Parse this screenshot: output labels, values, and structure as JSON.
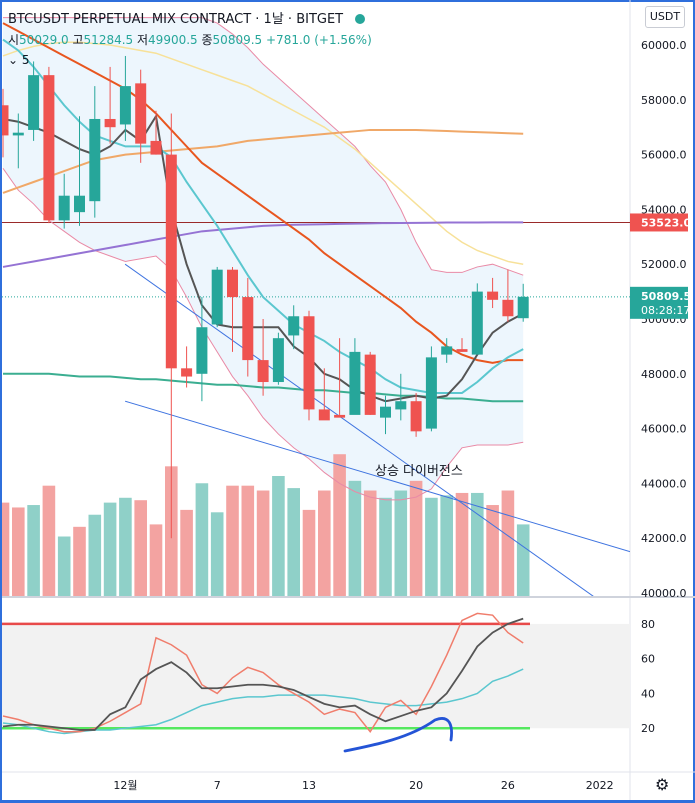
{
  "header": {
    "symbol": "BTCUSDT PERPETUAL MIX CONTRACT",
    "interval": "1날",
    "exchange": "BITGET",
    "open_label": "시",
    "open": "50029.0",
    "high_label": "고",
    "high": "51284.5",
    "low_label": "저",
    "low": "49900.5",
    "close_label": "종",
    "close": "50809.5",
    "change": "+781.0 (+1.56%)",
    "indicator_value": "5",
    "currency_button": "USDT"
  },
  "colors": {
    "up": "#26a69a",
    "down": "#ef5350",
    "up_vol": "#8fd0c8",
    "down_vol": "#f3a3a1",
    "ma5": "#555555",
    "ma10": "#5bc7cf",
    "ma20": "#e8561f",
    "ma60": "#3bae91",
    "ma120": "#9573d4",
    "ma200": "#f0a868",
    "ma_long": "#f7e199",
    "bb": "#e98aa6",
    "hline": "#9a2a2a",
    "trend": "#3f74e0",
    "stoch_k": "#f07d6c",
    "stoch_d": "#555555",
    "rsi": "#5bc7cf",
    "stoch_up": "#e84a4a",
    "stoch_dn": "#55e85f",
    "annot": "#2454d6"
  },
  "price_axis": {
    "ticks": [
      "60000.0",
      "58000.0",
      "56000.0",
      "54000.0",
      "52000.0",
      "50000.0",
      "48000.0",
      "46000.0",
      "44000.0",
      "42000.0",
      "40000.0"
    ]
  },
  "indicator_axis": {
    "ticks": [
      "80",
      "60",
      "40",
      "20"
    ]
  },
  "time_axis": {
    "ticks": [
      "12월",
      "7",
      "13",
      "20",
      "26",
      "2022"
    ]
  },
  "price_labels": {
    "hline": "53523.0",
    "last_price": "50809.5",
    "countdown": "08:28:17"
  },
  "annotation": {
    "text": "상승 다이버전스"
  },
  "settings_icon": "gear-icon",
  "chart_data": {
    "type": "candlestick",
    "ylim": [
      40000,
      61500
    ],
    "hline": 53523,
    "candles": [
      {
        "date": "11-23",
        "o": 57800,
        "h": 58400,
        "l": 55900,
        "c": 56700
      },
      {
        "date": "11-24",
        "o": 56700,
        "h": 57500,
        "l": 55500,
        "c": 56800
      },
      {
        "date": "11-25",
        "o": 56900,
        "h": 59400,
        "l": 56500,
        "c": 58900
      },
      {
        "date": "11-26",
        "o": 58900,
        "h": 59200,
        "l": 53500,
        "c": 53600
      },
      {
        "date": "11-27",
        "o": 53600,
        "h": 55300,
        "l": 53300,
        "c": 54500
      },
      {
        "date": "11-28",
        "o": 53900,
        "h": 57400,
        "l": 53400,
        "c": 54500
      },
      {
        "date": "11-29",
        "o": 54300,
        "h": 58500,
        "l": 53700,
        "c": 57300
      },
      {
        "date": "11-30",
        "o": 57300,
        "h": 59200,
        "l": 56400,
        "c": 57000
      },
      {
        "date": "12-01",
        "o": 57100,
        "h": 59600,
        "l": 56500,
        "c": 58500
      },
      {
        "date": "12-02",
        "o": 58600,
        "h": 59100,
        "l": 55700,
        "c": 56400
      },
      {
        "date": "12-03",
        "o": 56500,
        "h": 57600,
        "l": 56000,
        "c": 56000
      },
      {
        "date": "12-04",
        "o": 56000,
        "h": 57500,
        "l": 42000,
        "c": 48200
      },
      {
        "date": "12-05",
        "o": 48200,
        "h": 49000,
        "l": 47500,
        "c": 47900
      },
      {
        "date": "12-06",
        "o": 48000,
        "h": 50800,
        "l": 47000,
        "c": 49700
      },
      {
        "date": "12-07",
        "o": 49800,
        "h": 51900,
        "l": 49700,
        "c": 51800
      },
      {
        "date": "12-08",
        "o": 51800,
        "h": 51900,
        "l": 48800,
        "c": 50800
      },
      {
        "date": "12-09",
        "o": 50800,
        "h": 51500,
        "l": 47900,
        "c": 48500
      },
      {
        "date": "12-10",
        "o": 48500,
        "h": 50000,
        "l": 47200,
        "c": 47700
      },
      {
        "date": "12-11",
        "o": 47700,
        "h": 49500,
        "l": 47600,
        "c": 49300
      },
      {
        "date": "12-12",
        "o": 49400,
        "h": 50500,
        "l": 48900,
        "c": 50100
      },
      {
        "date": "12-13",
        "o": 50100,
        "h": 50300,
        "l": 46300,
        "c": 46700
      },
      {
        "date": "12-14",
        "o": 46700,
        "h": 48200,
        "l": 46400,
        "c": 46300
      },
      {
        "date": "12-15",
        "o": 46500,
        "h": 49300,
        "l": 46500,
        "c": 46400
      },
      {
        "date": "12-16",
        "o": 46500,
        "h": 49300,
        "l": 46600,
        "c": 48800
      },
      {
        "date": "12-17",
        "o": 48700,
        "h": 48800,
        "l": 46500,
        "c": 46500
      },
      {
        "date": "12-18",
        "o": 46400,
        "h": 47200,
        "l": 45800,
        "c": 46800
      },
      {
        "date": "12-19",
        "o": 46700,
        "h": 48000,
        "l": 46300,
        "c": 47000
      },
      {
        "date": "12-20",
        "o": 47000,
        "h": 47300,
        "l": 45700,
        "c": 45900
      },
      {
        "date": "12-21",
        "o": 46000,
        "h": 49000,
        "l": 45900,
        "c": 48600
      },
      {
        "date": "12-22",
        "o": 48700,
        "h": 49300,
        "l": 48400,
        "c": 49000
      },
      {
        "date": "12-23",
        "o": 48900,
        "h": 49300,
        "l": 48800,
        "c": 48800
      },
      {
        "date": "12-24",
        "o": 48700,
        "h": 51300,
        "l": 48700,
        "c": 51000
      },
      {
        "date": "12-25",
        "o": 51000,
        "h": 51500,
        "l": 50400,
        "c": 50700
      },
      {
        "date": "12-26",
        "o": 50700,
        "h": 51800,
        "l": 49900,
        "c": 50100
      },
      {
        "date": "12-27",
        "o": 50029,
        "h": 51284.5,
        "l": 49900.5,
        "c": 50809.5
      }
    ],
    "volume": [
      {
        "v": 3.9,
        "up": false
      },
      {
        "v": 3.7,
        "up": false
      },
      {
        "v": 3.8,
        "up": true
      },
      {
        "v": 4.6,
        "up": false
      },
      {
        "v": 2.5,
        "up": true
      },
      {
        "v": 2.9,
        "up": false
      },
      {
        "v": 3.4,
        "up": true
      },
      {
        "v": 3.9,
        "up": true
      },
      {
        "v": 4.1,
        "up": true
      },
      {
        "v": 4.0,
        "up": false
      },
      {
        "v": 3.0,
        "up": false
      },
      {
        "v": 5.4,
        "up": false
      },
      {
        "v": 3.6,
        "up": false
      },
      {
        "v": 4.7,
        "up": true
      },
      {
        "v": 3.5,
        "up": true
      },
      {
        "v": 4.6,
        "up": false
      },
      {
        "v": 4.6,
        "up": false
      },
      {
        "v": 4.4,
        "up": false
      },
      {
        "v": 5.0,
        "up": true
      },
      {
        "v": 4.5,
        "up": true
      },
      {
        "v": 3.6,
        "up": false
      },
      {
        "v": 4.4,
        "up": false
      },
      {
        "v": 5.9,
        "up": false
      },
      {
        "v": 4.8,
        "up": true
      },
      {
        "v": 4.4,
        "up": false
      },
      {
        "v": 4.1,
        "up": true
      },
      {
        "v": 4.4,
        "up": true
      },
      {
        "v": 4.8,
        "up": false
      },
      {
        "v": 4.1,
        "up": true
      },
      {
        "v": 4.2,
        "up": true
      },
      {
        "v": 4.3,
        "up": false
      },
      {
        "v": 4.3,
        "up": true
      },
      {
        "v": 3.8,
        "up": false
      },
      {
        "v": 4.4,
        "up": false
      },
      {
        "v": 3.0,
        "up": true
      }
    ],
    "ma5": [
      57300,
      57200,
      57000,
      56800,
      56500,
      56200,
      56000,
      56300,
      56900,
      56500,
      57400,
      54000,
      52000,
      50500,
      49800,
      49700,
      49700,
      49700,
      49700,
      49000,
      48600,
      48000,
      47800,
      47400,
      47200,
      47000,
      47100,
      47200,
      47100,
      47200,
      47800,
      48700,
      49500,
      49900,
      50200
    ],
    "ma10": [
      60200,
      59800,
      59200,
      58500,
      57800,
      57200,
      56700,
      56500,
      56300,
      56300,
      56300,
      55900,
      55000,
      54200,
      53400,
      52500,
      51600,
      50800,
      50300,
      49800,
      49500,
      49200,
      48800,
      48500,
      48200,
      47800,
      47500,
      47400,
      47300,
      47300,
      47300,
      47700,
      48200,
      48600,
      48900
    ],
    "ma20": [
      60800,
      60500,
      60200,
      59900,
      59600,
      59300,
      59000,
      58700,
      58400,
      58000,
      57500,
      56900,
      56300,
      55700,
      55300,
      54900,
      54500,
      54100,
      53700,
      53300,
      52900,
      52400,
      52000,
      51600,
      51200,
      50800,
      50400,
      49900,
      49500,
      49000,
      48700,
      48500,
      48400,
      48500,
      48500
    ],
    "ma60": [
      48000,
      48000,
      48000,
      48000,
      47950,
      47900,
      47900,
      47900,
      47850,
      47800,
      47800,
      47750,
      47700,
      47650,
      47600,
      47600,
      47550,
      47500,
      47500,
      47450,
      47400,
      47400,
      47350,
      47300,
      47300,
      47250,
      47200,
      47200,
      47150,
      47100,
      47100,
      47050,
      47000,
      47000,
      47000
    ],
    "ma120": [
      51900,
      52000,
      52100,
      52200,
      52300,
      52400,
      52500,
      52600,
      52700,
      52800,
      52900,
      53000,
      53100,
      53200,
      53250,
      53300,
      53350,
      53400,
      53420,
      53440,
      53450,
      53460,
      53470,
      53480,
      53490,
      53500,
      53505,
      53510,
      53515,
      53520,
      53520,
      53520,
      53525,
      53525,
      53525
    ],
    "ma200": [
      54600,
      54800,
      55000,
      55200,
      55400,
      55600,
      55800,
      55900,
      56000,
      56050,
      56100,
      56150,
      56200,
      56250,
      56300,
      56400,
      56500,
      56550,
      56600,
      56650,
      56700,
      56750,
      56800,
      56850,
      56900,
      56900,
      56900,
      56900,
      56880,
      56860,
      56840,
      56820,
      56800,
      56780,
      56760
    ],
    "ma_long": [
      59600,
      59800,
      59950,
      60050,
      60100,
      60100,
      60050,
      60000,
      59900,
      59800,
      59700,
      59500,
      59300,
      59100,
      58900,
      58700,
      58500,
      58200,
      57900,
      57600,
      57300,
      57000,
      56600,
      56200,
      55700,
      55200,
      54700,
      54200,
      53700,
      53200,
      52800,
      52500,
      52300,
      52100,
      52000
    ],
    "bb_upper": [
      61000,
      61000,
      61000,
      61000,
      61000,
      61000,
      61000,
      61000,
      61000,
      61000,
      61000,
      61000,
      61000,
      61000,
      60800,
      60400,
      59900,
      59300,
      58800,
      58300,
      57800,
      57300,
      56800,
      56300,
      55600,
      55000,
      54000,
      52800,
      51800,
      51700,
      51700,
      51900,
      52000,
      51800,
      51600
    ],
    "bb_lower": [
      55500,
      54700,
      54200,
      53600,
      53200,
      52800,
      52500,
      52300,
      52100,
      52200,
      52300,
      51800,
      50800,
      49700,
      48800,
      47900,
      47200,
      46400,
      45800,
      45300,
      44900,
      44400,
      44000,
      43700,
      43500,
      43400,
      43400,
      43500,
      43800,
      44600,
      45300,
      45400,
      45400,
      45400,
      45500
    ],
    "trend_upper": {
      "x": [
        7,
        20
      ],
      "y": [
        52000,
        47000
      ]
    },
    "trend_lower": {
      "x": [
        7,
        20
      ],
      "y": [
        47000,
        44900
      ]
    },
    "stoch_k": [
      27,
      25,
      22,
      20,
      18,
      18,
      20,
      24,
      29,
      34,
      72,
      68,
      62,
      45,
      40,
      49,
      55,
      52,
      45,
      40,
      35,
      28,
      31,
      29,
      18,
      32,
      36,
      28,
      44,
      62,
      82,
      86,
      85,
      75,
      69
    ],
    "stoch_d": [
      21,
      22,
      22,
      21,
      20,
      19,
      19,
      28,
      32,
      48,
      54,
      58,
      52,
      43,
      43,
      44,
      45,
      45,
      44,
      42,
      38,
      34,
      32,
      33,
      28,
      24,
      27,
      30,
      32,
      40,
      53,
      67,
      75,
      80,
      83
    ],
    "rsi": [
      23,
      22,
      20,
      18,
      17,
      18,
      19,
      19,
      20,
      21,
      22,
      25,
      29,
      33,
      35,
      37,
      38,
      38,
      39,
      39,
      39,
      39,
      38,
      37,
      35,
      34,
      33,
      33,
      34,
      35,
      37,
      40,
      47,
      50,
      54
    ],
    "stoch_bounds": {
      "upper": 80,
      "lower": 20
    },
    "indicator_ylim": [
      0,
      93
    ]
  }
}
